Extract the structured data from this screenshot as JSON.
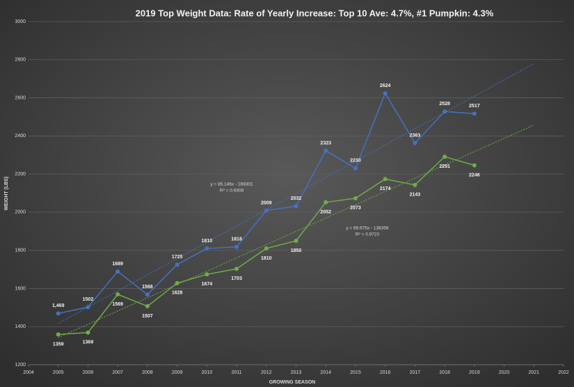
{
  "chart_data": {
    "type": "line",
    "title": "2019 Top Weight Data: Rate of Yearly Increase: Top 10 Ave: 4.7%, #1 Pumpkin: 4.3%",
    "x_label": "GROWING SEASON",
    "y_label": "WEIGHT (LBS)",
    "x": [
      2005,
      2006,
      2007,
      2008,
      2009,
      2010,
      2011,
      2012,
      2013,
      2014,
      2015,
      2016,
      2017,
      2018,
      2019
    ],
    "xlim": [
      2004,
      2022
    ],
    "xticks": [
      2004,
      2005,
      2006,
      2007,
      2008,
      2009,
      2010,
      2011,
      2012,
      2013,
      2014,
      2015,
      2016,
      2017,
      2018,
      2019,
      2020,
      2021,
      2022
    ],
    "ylim": [
      1200,
      3000
    ],
    "yticks": [
      1200,
      1400,
      1600,
      1800,
      2000,
      2200,
      2400,
      2600,
      2800,
      3000
    ],
    "grid": true,
    "series": [
      {
        "color": "#4472c4",
        "values": [
          1469,
          1502,
          1689,
          1568,
          1725,
          1810,
          1818,
          2009,
          2032,
          2323,
          2230,
          2624,
          2363,
          2528,
          2517
        ],
        "value_labels": [
          "1,469",
          "1502",
          "1689",
          "1568",
          "1725",
          "1810",
          "1818",
          "2009",
          "2032",
          "2323",
          "2230",
          "2624",
          "2363",
          "2528",
          "2517"
        ],
        "label_position": "above",
        "trend": {
          "slope": 85.146,
          "intercept": -169301,
          "from": 2005,
          "to": 2021,
          "equation": "y = 85.146x - 169301",
          "r_squared": "R² = 0.9308"
        }
      },
      {
        "color": "#70ad47",
        "values": [
          1359,
          1369,
          1569,
          1507,
          1628,
          1674,
          1703,
          1810,
          1850,
          2052,
          2073,
          2174,
          2143,
          2291,
          2246
        ],
        "label_position": "below",
        "trend": {
          "slope": 69.675,
          "intercept": -138356,
          "from": 2005,
          "to": 2021,
          "equation": "y = 69.675x - 138356",
          "r_squared": "R² = 0.9723"
        }
      }
    ]
  }
}
